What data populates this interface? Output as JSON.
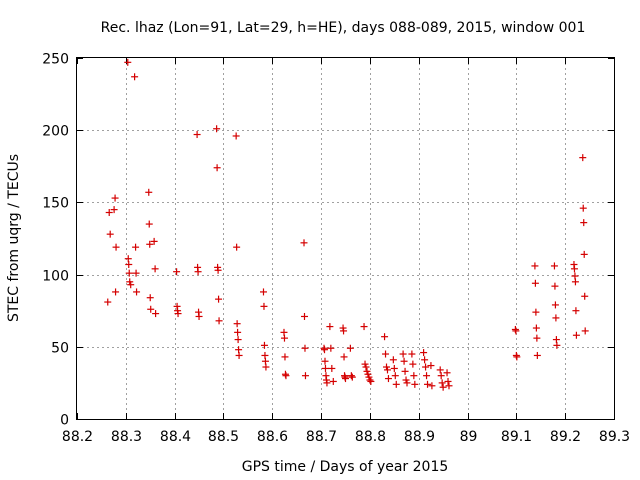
{
  "chart_data": {
    "type": "scatter",
    "title": "Rec. lhaz (Lon=91, Lat=29, h=HE), days 088-089, 2015, window 001",
    "xlabel": "GPS time / Days of year 2015",
    "ylabel": "STEC from uqrg / TECUs",
    "xlim": [
      88.2,
      89.3
    ],
    "ylim": [
      0,
      250
    ],
    "xticks": [
      "88.2",
      "88.3",
      "88.4",
      "88.5",
      "88.6",
      "88.7",
      "88.8",
      "88.9",
      "89",
      "89.1",
      "89.2",
      "89.3"
    ],
    "yticks": [
      "0",
      "50",
      "100",
      "150",
      "200",
      "250"
    ],
    "grid": true,
    "marker": "+",
    "color": "#d40000",
    "series": [
      {
        "name": "STEC",
        "x": [
          88.263,
          88.266,
          88.268,
          88.276,
          88.278,
          88.279,
          88.28,
          88.304,
          88.305,
          88.306,
          88.307,
          88.308,
          88.31,
          88.318,
          88.32,
          88.321,
          88.322,
          88.347,
          88.348,
          88.349,
          88.35,
          88.351,
          88.358,
          88.36,
          88.361,
          88.404,
          88.405,
          88.406,
          88.407,
          88.446,
          88.447,
          88.448,
          88.449,
          88.45,
          88.486,
          88.487,
          88.488,
          88.489,
          88.49,
          88.491,
          88.526,
          88.527,
          88.528,
          88.529,
          88.53,
          88.531,
          88.532,
          88.582,
          88.583,
          88.584,
          88.585,
          88.586,
          88.587,
          88.624,
          88.625,
          88.626,
          88.627,
          88.628,
          88.665,
          88.666,
          88.667,
          88.668,
          88.706,
          88.707,
          88.708,
          88.709,
          88.71,
          88.711,
          88.712,
          88.718,
          88.72,
          88.722,
          88.725,
          88.745,
          88.746,
          88.747,
          88.748,
          88.749,
          88.75,
          88.76,
          88.762,
          88.764,
          88.788,
          88.79,
          88.792,
          88.794,
          88.796,
          88.798,
          88.8,
          88.802,
          88.83,
          88.832,
          88.834,
          88.836,
          88.838,
          88.848,
          88.85,
          88.852,
          88.854,
          88.868,
          88.87,
          88.872,
          88.874,
          88.876,
          88.886,
          88.888,
          88.89,
          88.892,
          88.91,
          88.912,
          88.914,
          88.916,
          88.918,
          88.925,
          88.927,
          88.944,
          88.946,
          88.948,
          88.95,
          88.958,
          88.96,
          88.962,
          89.098,
          89.099,
          89.1,
          89.101,
          89.138,
          89.139,
          89.14,
          89.141,
          89.142,
          89.143,
          89.178,
          89.179,
          89.18,
          89.181,
          89.182,
          89.183,
          89.218,
          89.219,
          89.22,
          89.221,
          89.222,
          89.223,
          89.236,
          89.237,
          89.238,
          89.239,
          89.24,
          89.241
        ],
        "y": [
          81,
          143,
          128,
          145,
          153,
          88,
          119,
          247,
          111,
          107,
          101,
          95,
          93,
          237,
          119,
          101,
          88,
          157,
          135,
          121,
          84,
          76,
          123,
          104,
          73,
          102,
          78,
          75,
          73,
          197,
          105,
          102,
          74,
          71,
          201,
          174,
          105,
          103,
          83,
          68,
          196,
          119,
          66,
          60,
          55,
          48,
          44,
          88,
          78,
          51,
          44,
          40,
          36,
          60,
          56,
          43,
          31,
          30,
          122,
          71,
          49,
          30,
          49,
          48,
          40,
          35,
          30,
          27,
          25,
          64,
          49,
          35,
          26,
          63,
          61,
          43,
          30,
          29,
          28,
          49,
          30,
          29,
          64,
          38,
          36,
          33,
          31,
          29,
          27,
          26,
          57,
          45,
          36,
          34,
          28,
          41,
          35,
          30,
          24,
          45,
          40,
          33,
          27,
          25,
          45,
          38,
          30,
          24,
          46,
          41,
          36,
          30,
          24,
          37,
          23,
          34,
          30,
          25,
          22,
          32,
          26,
          23,
          62,
          61,
          44,
          43,
          106,
          94,
          74,
          63,
          56,
          44,
          106,
          92,
          79,
          70,
          55,
          51,
          107,
          104,
          99,
          95,
          75,
          58,
          181,
          146,
          136,
          114,
          85,
          61
        ]
      }
    ]
  }
}
